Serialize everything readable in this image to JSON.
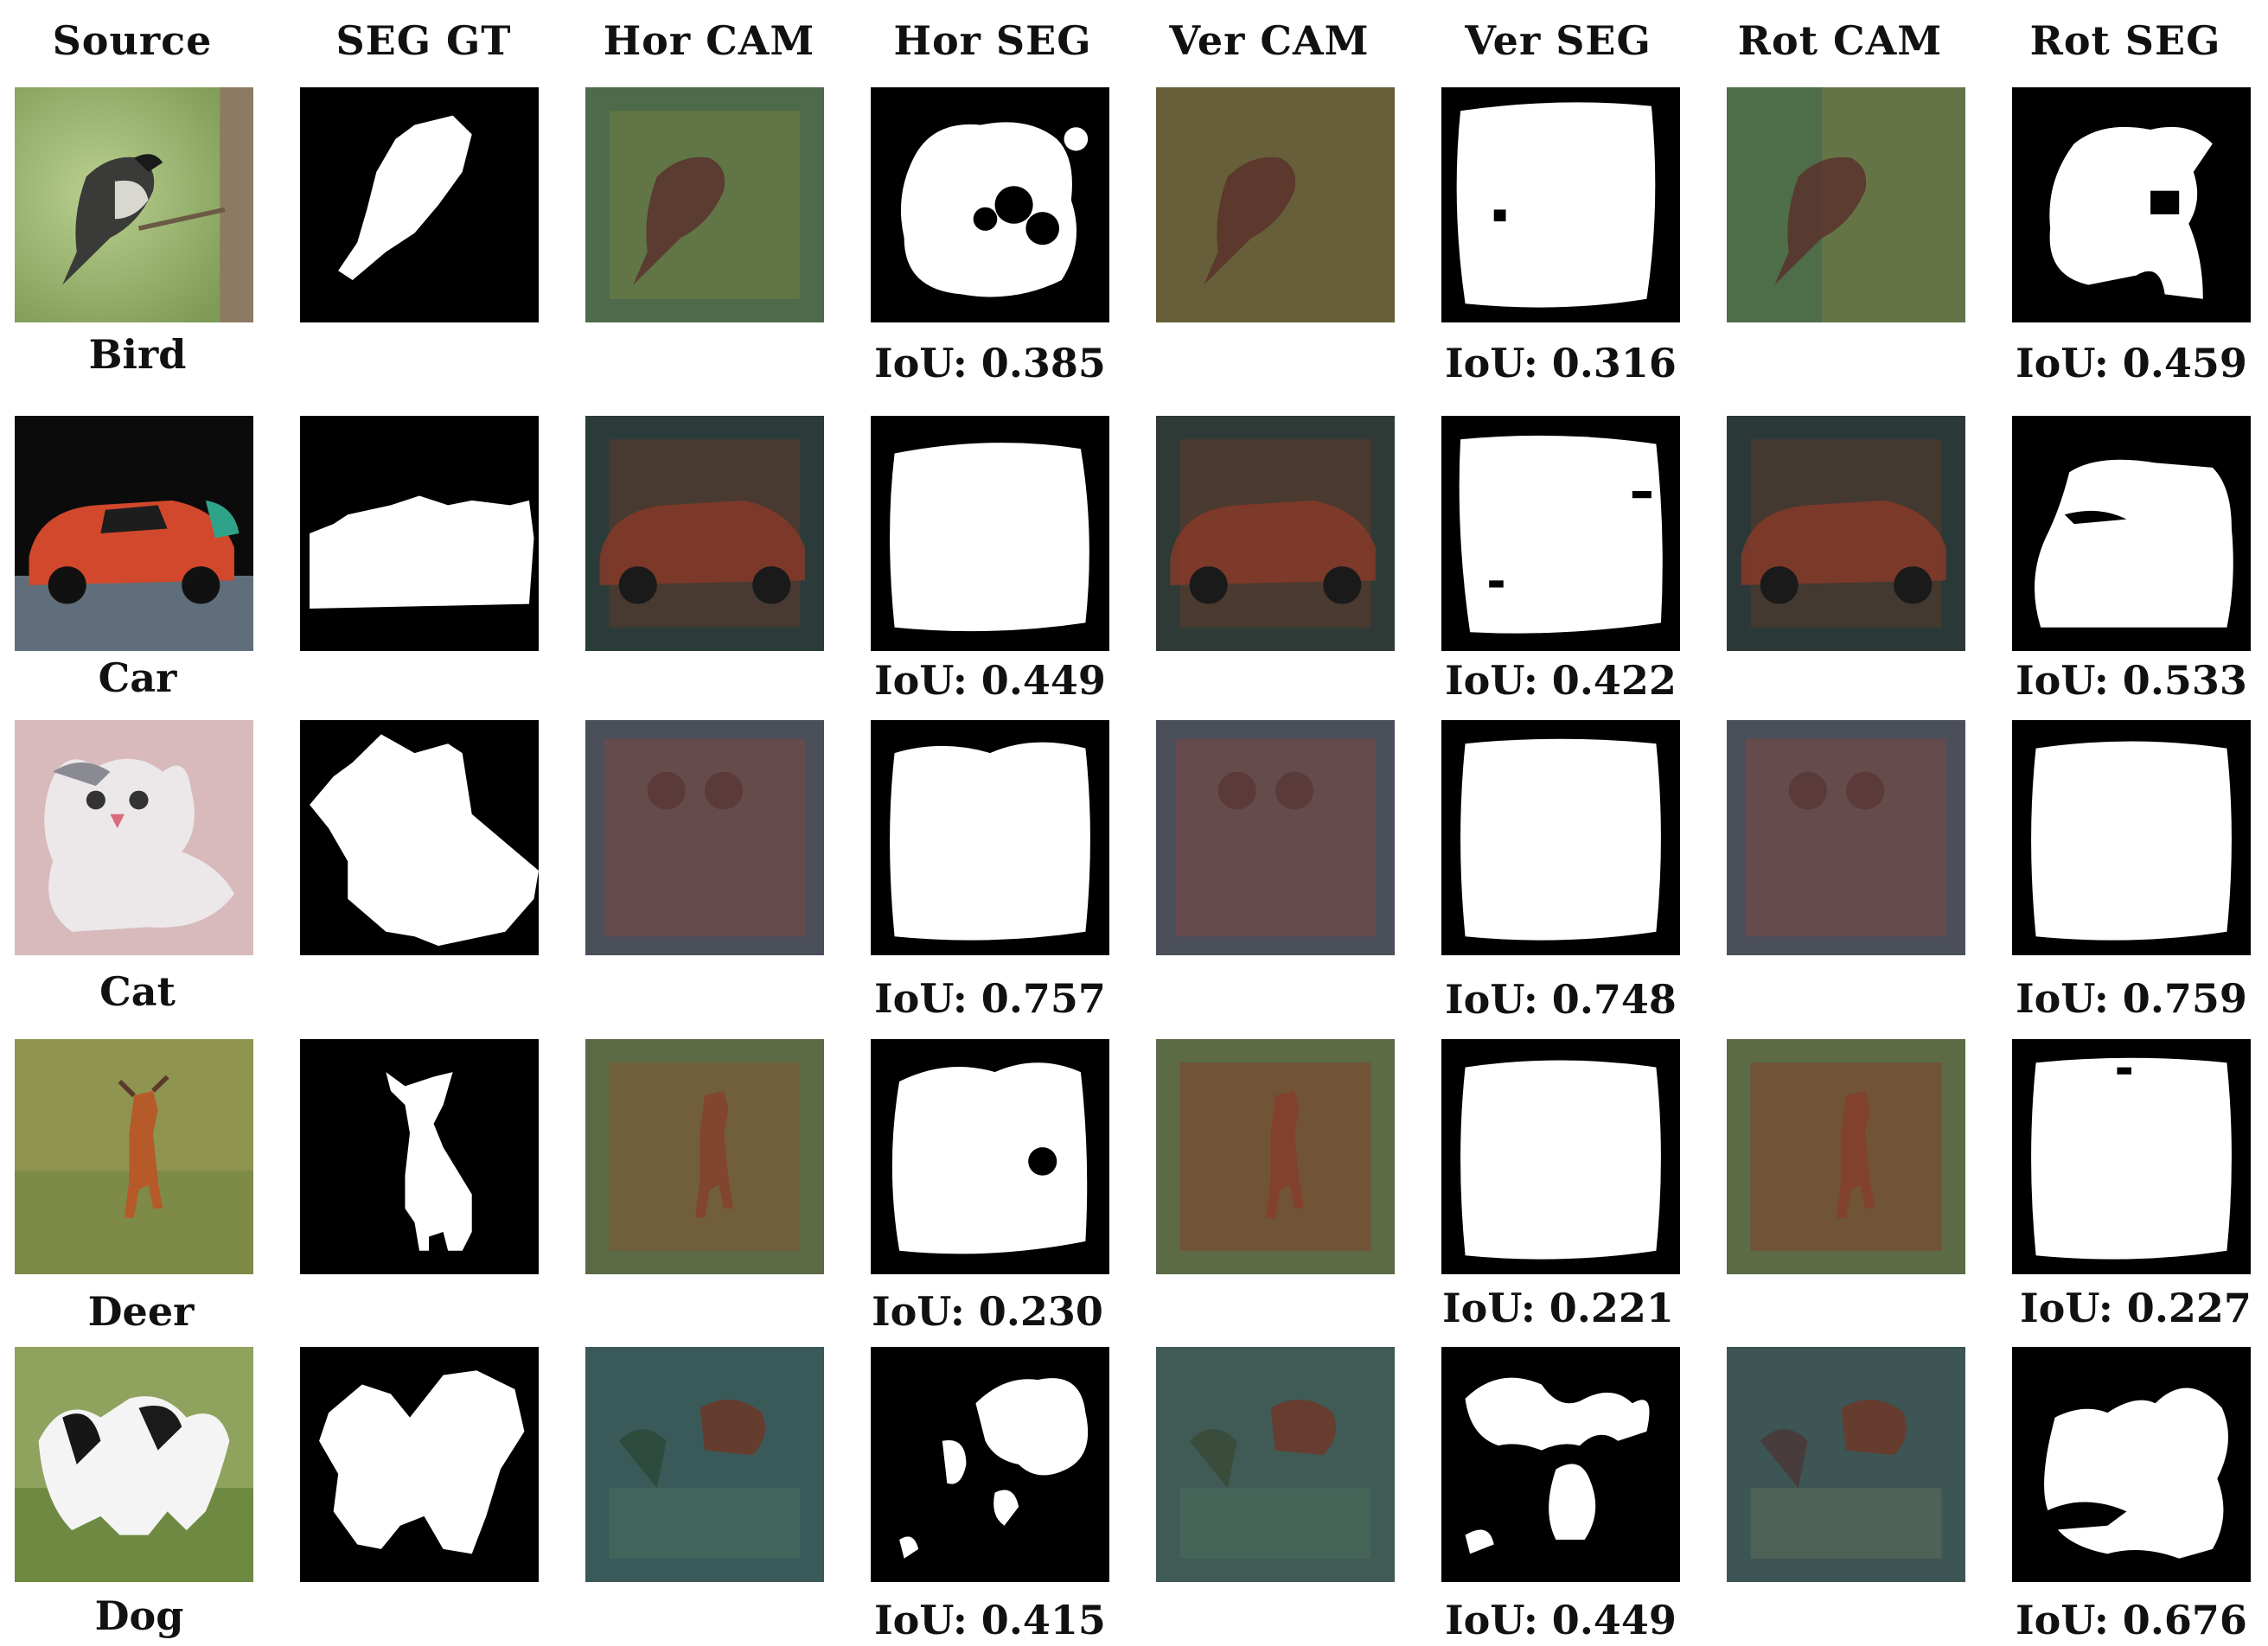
{
  "columns": [
    "Source",
    "SEG GT",
    "Hor CAM",
    "Hor SEG",
    "Ver CAM",
    "Ver SEG",
    "Rot CAM",
    "Rot SEG"
  ],
  "rows": [
    {
      "name": "Bird",
      "hor_iou": "IoU: 0.385",
      "ver_iou": "IoU: 0.316",
      "rot_iou": "IoU: 0.459"
    },
    {
      "name": "Car",
      "hor_iou": "IoU: 0.449",
      "ver_iou": "IoU: 0.422",
      "rot_iou": "IoU: 0.533"
    },
    {
      "name": "Cat",
      "hor_iou": "IoU: 0.757",
      "ver_iou": "IoU: 0.748",
      "rot_iou": "IoU: 0.759"
    },
    {
      "name": "Deer",
      "hor_iou": "IoU: 0.230",
      "ver_iou": "IoU: 0.221",
      "rot_iou": "IoU: 0.227"
    },
    {
      "name": "Dog",
      "hor_iou": "IoU: 0.415",
      "ver_iou": "IoU: 0.449",
      "rot_iou": "IoU: 0.676"
    }
  ]
}
